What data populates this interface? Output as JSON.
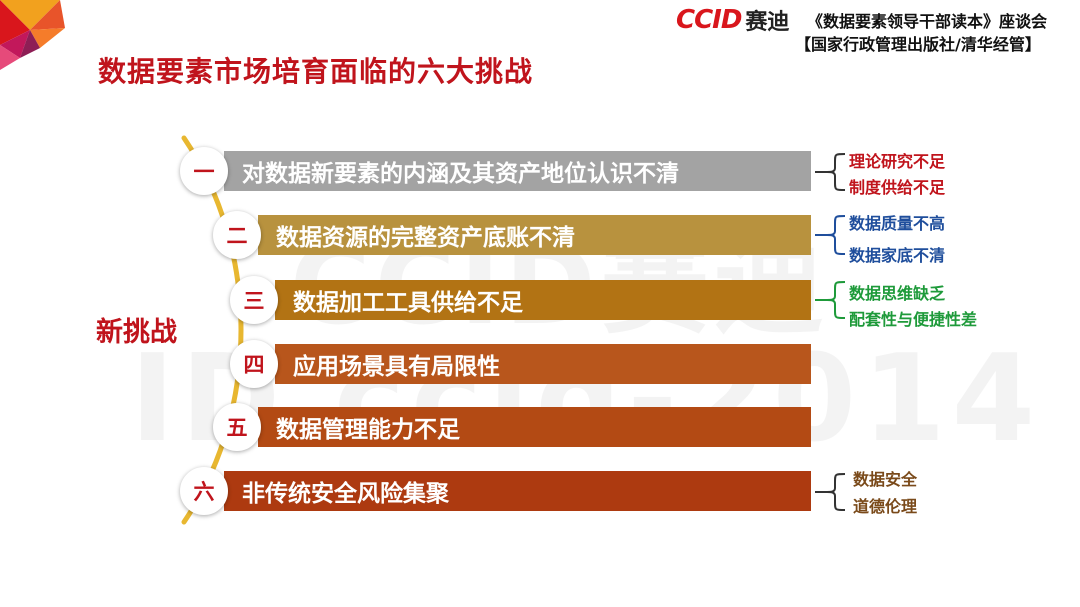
{
  "header": {
    "logo_en": "CCID",
    "logo_cn": "赛迪",
    "line1": "《数据要素领导干部读本》座谈会",
    "line2": "【国家行政管理出版社/清华经管】"
  },
  "title": "数据要素市场培育面临的六大挑战",
  "side_label": "新挑战",
  "watermark": {
    "text1": "CCID赛迪",
    "text2": "ID  ccid-2014"
  },
  "challenges": [
    {
      "num": "一",
      "text": "对数据新要素的内涵及其资产地位认识不清",
      "color": "#a3a3a3"
    },
    {
      "num": "二",
      "text": "数据资源的完整资产底账不清",
      "color": "#b8923e"
    },
    {
      "num": "三",
      "text": "数据加工工具供给不足",
      "color": "#b27314"
    },
    {
      "num": "四",
      "text": "应用场景具有局限性",
      "color": "#b8561c"
    },
    {
      "num": "五",
      "text": "数据管理能力不足",
      "color": "#b34a14"
    },
    {
      "num": "六",
      "text": "非传统安全风险集聚",
      "color": "#ad3a10"
    }
  ],
  "notes": [
    {
      "lines": [
        "理论研究不足",
        "制度供给不足"
      ],
      "color": "#c0141c"
    },
    {
      "lines": [
        "数据质量不高",
        "数据家底不清"
      ],
      "color": "#1f4e9c"
    },
    {
      "lines": [
        "数据思维缺乏",
        "配套性与便捷性差"
      ],
      "color": "#1e9a3a"
    },
    {
      "lines": [
        "数据安全",
        "道德伦理"
      ],
      "color": "#7a4a1a"
    }
  ]
}
